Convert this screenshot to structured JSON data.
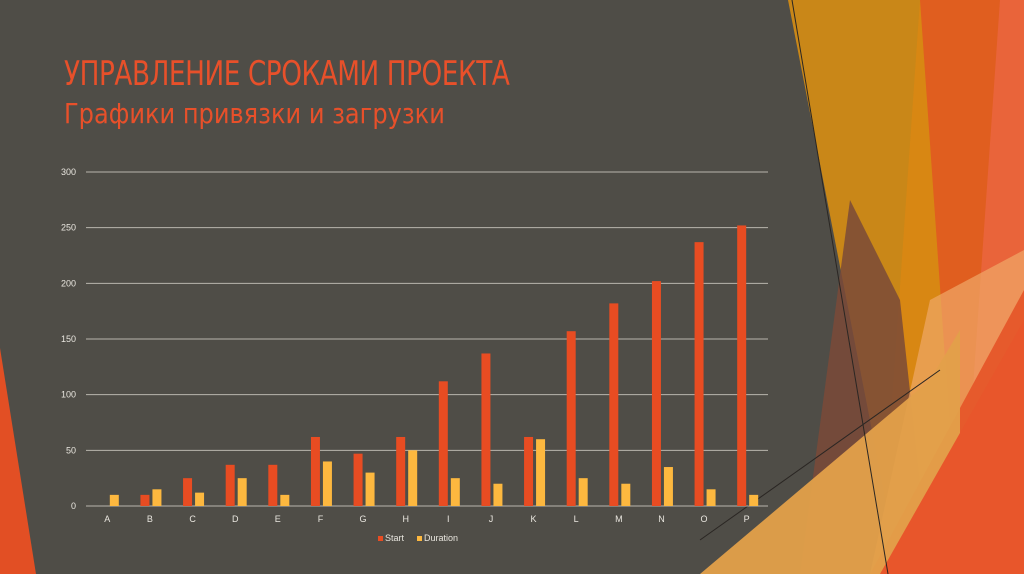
{
  "slide": {
    "title": "УПРАВЛЕНИЕ СРОКАМИ ПРОЕКТА",
    "subtitle": "Графики привязки и загрузки"
  },
  "colors": {
    "background": "#4f4d47",
    "title": "#e8502a",
    "start": "#e84c22",
    "duration": "#fdb83f",
    "gridline": "#b8b5ac"
  },
  "chart_data": {
    "type": "bar",
    "title": "",
    "xlabel": "",
    "ylabel": "",
    "categories": [
      "A",
      "B",
      "C",
      "D",
      "E",
      "F",
      "G",
      "H",
      "I",
      "J",
      "K",
      "L",
      "M",
      "N",
      "O",
      "P"
    ],
    "series": [
      {
        "name": "Start",
        "color": "#e84c22",
        "values": [
          0,
          10,
          25,
          37,
          37,
          62,
          47,
          62,
          112,
          137,
          62,
          157,
          182,
          202,
          237,
          252
        ]
      },
      {
        "name": "Duration",
        "color": "#fdb83f",
        "values": [
          10,
          15,
          12,
          25,
          10,
          40,
          30,
          50,
          25,
          20,
          60,
          25,
          20,
          35,
          15,
          10
        ]
      }
    ],
    "ylim": [
      0,
      300
    ],
    "yticks": [
      0,
      50,
      100,
      150,
      200,
      250,
      300
    ],
    "grid": true,
    "legend_position": "bottom"
  }
}
